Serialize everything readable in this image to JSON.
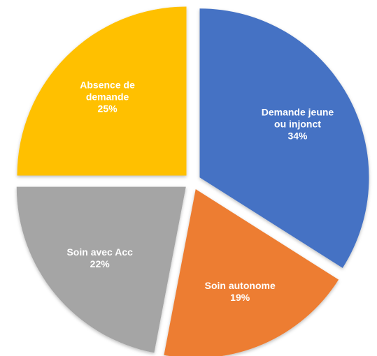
{
  "chart_data": {
    "type": "pie",
    "exploded": true,
    "start_angle_deg": 0,
    "direction": "clockwise",
    "slices": [
      {
        "label": "Demande jeune ou injonct",
        "value": 34,
        "pct_text": "34%",
        "color": "#4472C4",
        "label_lines": [
          "Demande jeune",
          "ou injonct"
        ]
      },
      {
        "label": "Soin autonome",
        "value": 19,
        "pct_text": "19%",
        "color": "#ED7D31",
        "label_lines": [
          "Soin autonome"
        ]
      },
      {
        "label": "Soin avec Acc",
        "value": 22,
        "pct_text": "22%",
        "color": "#A5A5A5",
        "label_lines": [
          "Soin avec Acc"
        ]
      },
      {
        "label": "Absence de demande",
        "value": 25,
        "pct_text": "25%",
        "color": "#FFC000",
        "label_lines": [
          "Absence de",
          "demande"
        ]
      }
    ]
  }
}
